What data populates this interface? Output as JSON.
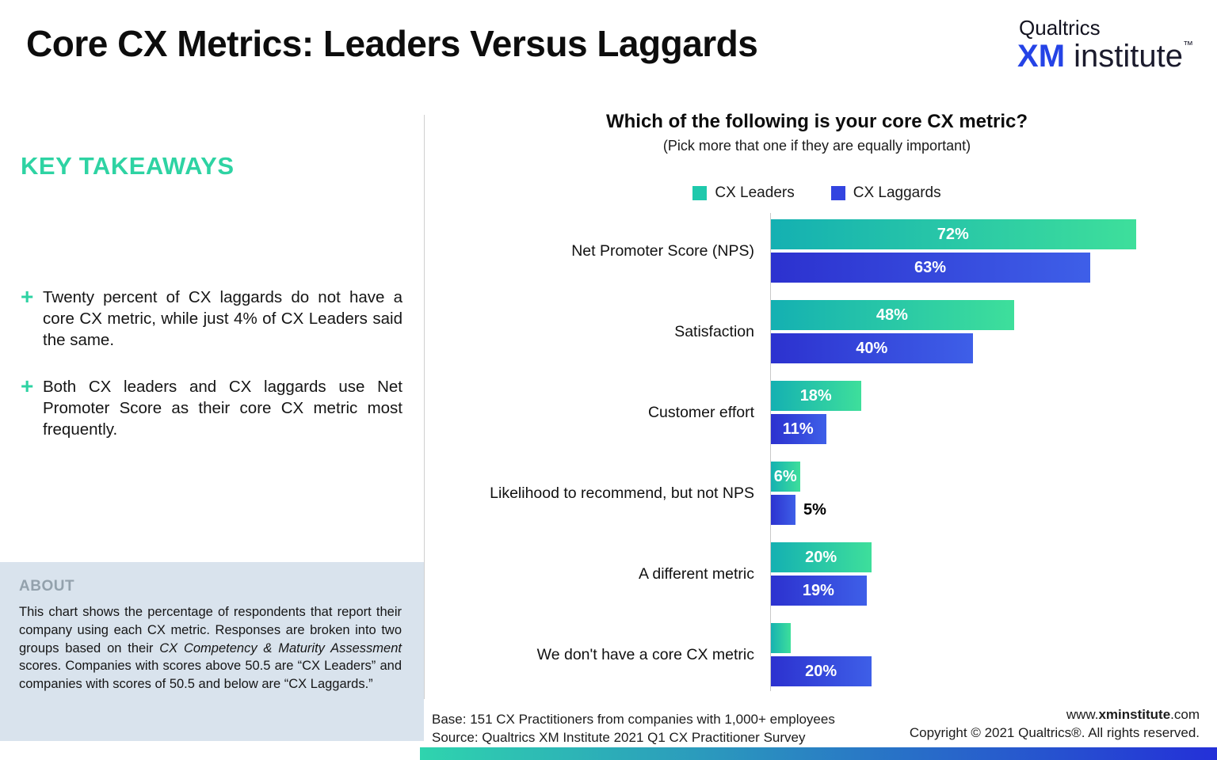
{
  "theme": {
    "accent": "#2ED3A3",
    "xm_blue": "#2543E6",
    "about_bg": "#D9E3ED",
    "about_head": "#93A1AC",
    "leader_a": "#14B0B2",
    "leader_b": "#3EDF9B",
    "laggard_a": "#2C31CF",
    "laggard_b": "#3E5FE8",
    "strip_a": "#2FD4AE",
    "strip_b": "#2430D8"
  },
  "header": {
    "title": "Core CX Metrics: Leaders Versus Laggards",
    "logo": {
      "company": "Qualtrics",
      "xm": "XM",
      "institute": " institute",
      "tm": "™"
    }
  },
  "sidebar": {
    "takeaways_title": "KEY TAKEAWAYS",
    "bullet_glyph": "+",
    "takeaways": [
      "Twenty percent of CX laggards do not have a core CX metric, while just 4% of CX Leaders said the same.",
      "Both CX leaders and CX laggards use Net Promoter Score as their core CX metric most frequently."
    ],
    "about": {
      "title": "ABOUT",
      "text_before": "This chart shows the percentage of respondents that report their company using each CX metric. Responses are broken into two groups based on their ",
      "text_italic": "CX Competency & Maturity Assessment",
      "text_after": " scores. Companies with scores above 50.5 are “CX Leaders” and companies with scores of 50.5 and below are “CX Laggards.”"
    }
  },
  "chart": {
    "title": "Which of the following is your core CX metric?",
    "subtitle": "(Pick more that one if they are equally important)",
    "legend": [
      {
        "label": "CX Leaders",
        "color": "#1FC9AC"
      },
      {
        "label": "CX Laggards",
        "color": "#3344E0"
      }
    ]
  },
  "chart_data": {
    "type": "bar",
    "orientation": "horizontal",
    "xlim": [
      0,
      85
    ],
    "categories": [
      "Net Promoter Score (NPS)",
      "Satisfaction",
      "Customer effort",
      "Likelihood to recommend, but not NPS",
      "A different metric",
      "We don't have a core CX metric"
    ],
    "series": [
      {
        "name": "CX Leaders",
        "values": [
          72,
          48,
          18,
          6,
          20,
          4
        ]
      },
      {
        "name": "CX Laggards",
        "values": [
          63,
          40,
          11,
          5,
          19,
          20
        ]
      }
    ],
    "rows": [
      {
        "category": "Net Promoter Score (NPS)",
        "leader": {
          "value": 72,
          "label": "72%",
          "label_pos": "inside"
        },
        "laggard": {
          "value": 63,
          "label": "63%",
          "label_pos": "inside"
        }
      },
      {
        "category": "Satisfaction",
        "leader": {
          "value": 48,
          "label": "48%",
          "label_pos": "inside"
        },
        "laggard": {
          "value": 40,
          "label": "40%",
          "label_pos": "inside"
        }
      },
      {
        "category": "Customer effort",
        "leader": {
          "value": 18,
          "label": "18%",
          "label_pos": "inside"
        },
        "laggard": {
          "value": 11,
          "label": "11%",
          "label_pos": "inside"
        }
      },
      {
        "category": "Likelihood to recommend, but not NPS",
        "leader": {
          "value": 6,
          "label": "6%",
          "label_pos": "inside"
        },
        "laggard": {
          "value": 5,
          "label": "5%",
          "label_pos": "outside"
        }
      },
      {
        "category": "A different metric",
        "leader": {
          "value": 20,
          "label": "20%",
          "label_pos": "inside"
        },
        "laggard": {
          "value": 19,
          "label": "19%",
          "label_pos": "inside"
        }
      },
      {
        "category": "We don't have a core CX metric",
        "leader": {
          "value": 4,
          "label": "",
          "label_pos": "none"
        },
        "laggard": {
          "value": 20,
          "label": "20%",
          "label_pos": "inside"
        }
      }
    ]
  },
  "footer": {
    "base": "Base: 151 CX Practitioners from companies with 1,000+ employees",
    "source": "Source: Qualtrics XM Institute 2021 Q1 CX Practitioner Survey",
    "site_prefix": "www.",
    "site_bold": "xminstitute",
    "site_suffix": ".com",
    "copyright": "Copyright © 2021 Qualtrics®. All rights reserved."
  }
}
